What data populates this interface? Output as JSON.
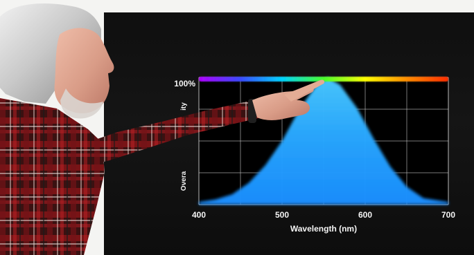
{
  "chart_data": {
    "type": "area",
    "title": "",
    "xlabel": "Wavelength (nm)",
    "ylabel_fragments": {
      "top": "ity",
      "bottom": "Overa"
    },
    "xlim": [
      400,
      700
    ],
    "ylim": [
      0,
      100
    ],
    "x_tick_labels": [
      "400",
      "500",
      "600",
      "700"
    ],
    "y_tick_labels": [
      "100%"
    ],
    "series": [
      {
        "x": [
          400,
          420,
          440,
          460,
          480,
          500,
          520,
          540,
          555,
          570,
          590,
          610,
          630,
          650,
          670,
          700
        ],
        "y": [
          2,
          4,
          8,
          17,
          31,
          50,
          74,
          93,
          100,
          94,
          76,
          52,
          30,
          14,
          5,
          2
        ]
      }
    ],
    "colors": {
      "spectrum_bar": [
        "#b000ff",
        "#3b4bff",
        "#00d4ff",
        "#48ff2b",
        "#ffff00",
        "#ff8c00",
        "#ff2d00"
      ],
      "area_fill": "#1ba6ff",
      "grid": "#d9d9d9"
    },
    "grid": true
  }
}
